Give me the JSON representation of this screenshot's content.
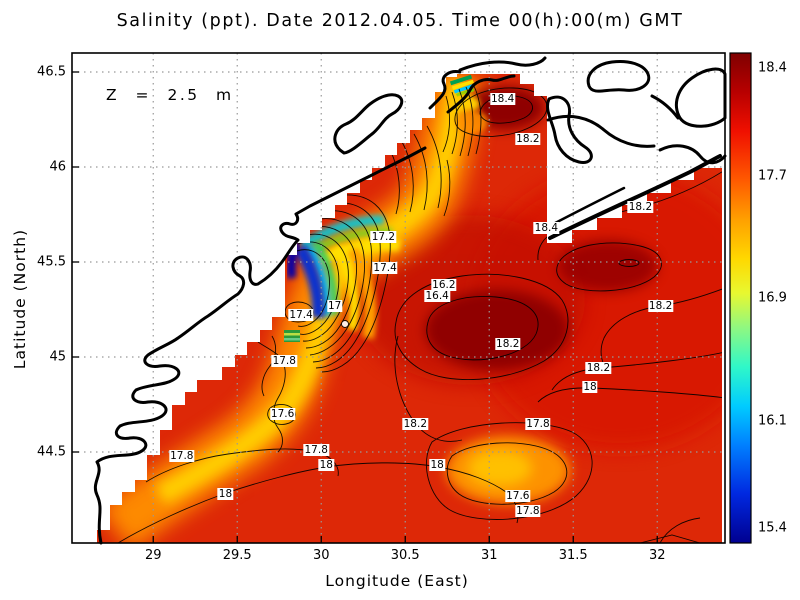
{
  "chart_data": {
    "type": "heatmap",
    "title": "Salinity (ppt). Date 2012.04.05. Time 00(h):00(m) GMT",
    "variable": "Salinity",
    "units": "ppt",
    "date": "2012.04.05",
    "time": "00(h):00(m) GMT",
    "annotation": "Z = 2.5 m",
    "xlabel": "Longitude (East)",
    "ylabel": "Latitude (North)",
    "xlim": [
      28.5,
      32.4
    ],
    "ylim": [
      44.0,
      46.6
    ],
    "x_ticks": [
      29,
      29.5,
      30,
      30.5,
      31,
      31.5,
      32
    ],
    "y_ticks": [
      46.5,
      46,
      45.5,
      45,
      44.5
    ],
    "grid": true,
    "colormap": "jet",
    "colorbar_ticks": [
      18.4,
      17.7,
      16.9,
      16.1,
      15.4
    ],
    "colorbar_range": [
      15.3,
      18.5
    ],
    "contour_interval": 0.2,
    "contour_labels": [
      {
        "value": "18.4",
        "lon": 31.08,
        "lat": 46.36
      },
      {
        "value": "18.2",
        "lon": 31.23,
        "lat": 46.15
      },
      {
        "value": "18.2",
        "lon": 31.9,
        "lat": 45.79
      },
      {
        "value": "18.4",
        "lon": 31.34,
        "lat": 45.68
      },
      {
        "value": "17.2",
        "lon": 30.37,
        "lat": 45.63
      },
      {
        "value": "17.4",
        "lon": 30.38,
        "lat": 45.47
      },
      {
        "value": "17",
        "lon": 30.08,
        "lat": 45.27
      },
      {
        "value": "17.4",
        "lon": 29.88,
        "lat": 45.22
      },
      {
        "value": "16.2",
        "lon": 30.73,
        "lat": 45.38
      },
      {
        "value": "16.4",
        "lon": 30.69,
        "lat": 45.32
      },
      {
        "value": "17.8",
        "lon": 29.78,
        "lat": 44.98
      },
      {
        "value": "17.6",
        "lon": 29.77,
        "lat": 44.7
      },
      {
        "value": "17.8",
        "lon": 29.17,
        "lat": 44.48
      },
      {
        "value": "17.8",
        "lon": 29.97,
        "lat": 44.51
      },
      {
        "value": "18",
        "lon": 30.03,
        "lat": 44.43
      },
      {
        "value": "18",
        "lon": 29.43,
        "lat": 44.28
      },
      {
        "value": "18.2",
        "lon": 31.11,
        "lat": 45.07
      },
      {
        "value": "18.2",
        "lon": 31.65,
        "lat": 44.94
      },
      {
        "value": "18",
        "lon": 31.6,
        "lat": 44.84
      },
      {
        "value": "18.2",
        "lon": 30.56,
        "lat": 44.65
      },
      {
        "value": "17.8",
        "lon": 31.29,
        "lat": 44.65
      },
      {
        "value": "18",
        "lon": 30.69,
        "lat": 44.43
      },
      {
        "value": "17.6",
        "lon": 31.17,
        "lat": 44.27
      },
      {
        "value": "17.8",
        "lon": 31.23,
        "lat": 44.19
      },
      {
        "value": "18.2",
        "lon": 32.02,
        "lat": 45.27
      }
    ]
  }
}
